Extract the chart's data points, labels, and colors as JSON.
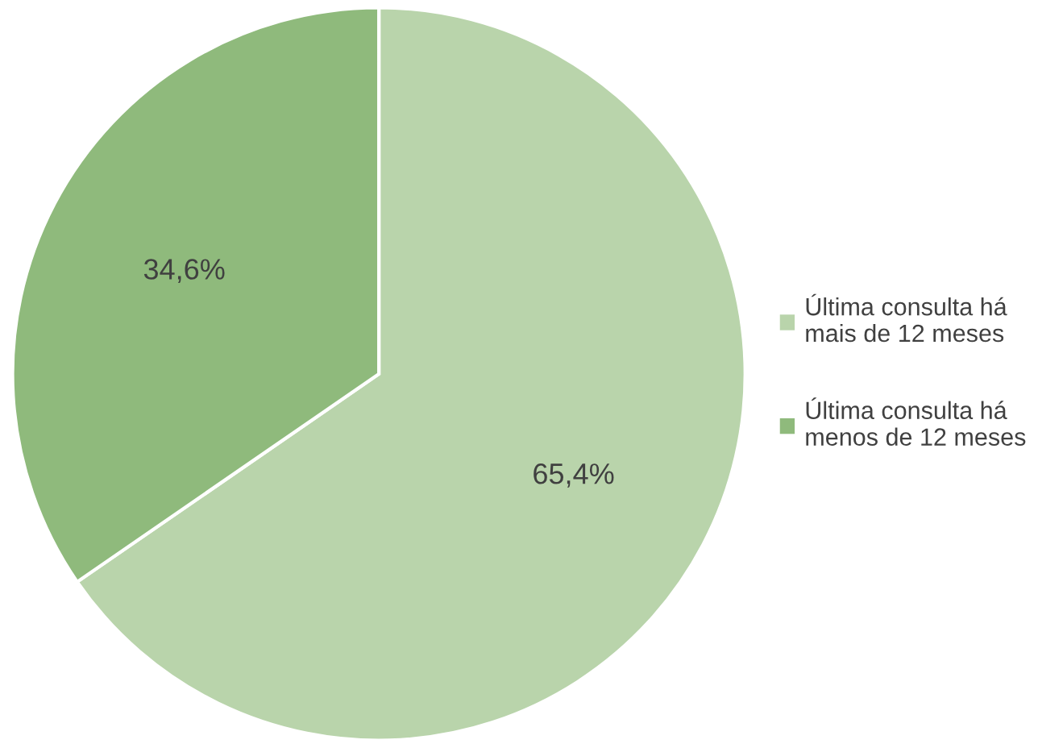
{
  "chart_data": {
    "type": "pie",
    "categories": [
      "Última consulta há mais de 12 meses",
      "Última consulta há menos de 12 meses"
    ],
    "values": [
      65.4,
      34.6
    ],
    "value_labels": [
      "65,4%",
      "34,6%"
    ],
    "colors": [
      "#b9d4ab",
      "#8fba7c"
    ],
    "legend": "right"
  }
}
